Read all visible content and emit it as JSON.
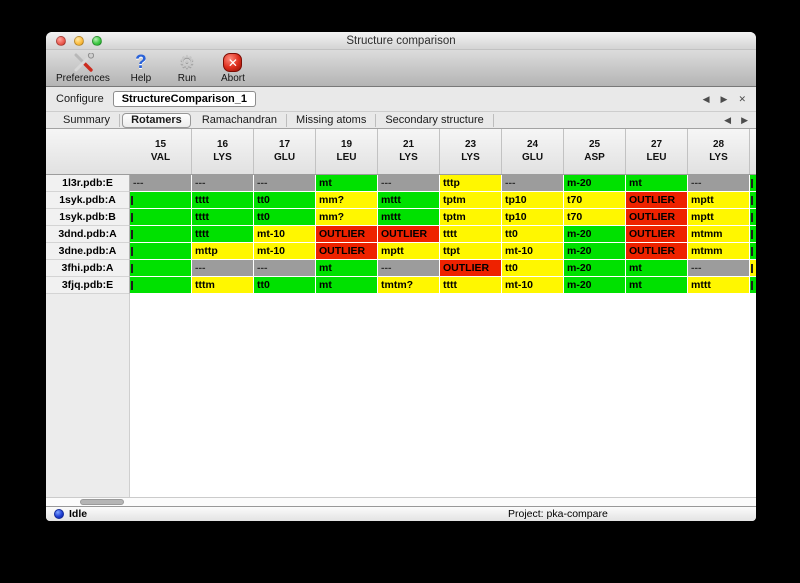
{
  "window": {
    "title": "Structure comparison"
  },
  "toolbar": {
    "buttons": [
      {
        "label": "Preferences",
        "icon": "preferences-tools-icon"
      },
      {
        "label": "Help",
        "icon": "help-question-icon"
      },
      {
        "label": "Run",
        "icon": "run-gear-icon"
      },
      {
        "label": "Abort",
        "icon": "abort-icon"
      }
    ]
  },
  "configure": {
    "label": "Configure",
    "value": "StructureComparison_1",
    "nav": [
      {
        "icon": "prev-arrow-icon"
      },
      {
        "icon": "next-arrow-icon"
      },
      {
        "icon": "close-icon"
      }
    ]
  },
  "tabs": {
    "items": [
      "Summary",
      "Rotamers",
      "Ramachandran",
      "Missing atoms",
      "Secondary structure"
    ],
    "active": "Rotamers",
    "nav": [
      {
        "icon": "prev-arrow-icon"
      },
      {
        "icon": "next-arrow-icon"
      }
    ]
  },
  "table": {
    "columns": [
      {
        "num": "15",
        "res": "VAL"
      },
      {
        "num": "16",
        "res": "LYS"
      },
      {
        "num": "17",
        "res": "GLU"
      },
      {
        "num": "19",
        "res": "LEU"
      },
      {
        "num": "21",
        "res": "LYS"
      },
      {
        "num": "23",
        "res": "LYS"
      },
      {
        "num": "24",
        "res": "GLU"
      },
      {
        "num": "25",
        "res": "ASP"
      },
      {
        "num": "27",
        "res": "LEU"
      },
      {
        "num": "28",
        "res": "LYS"
      }
    ],
    "rows": [
      {
        "label": "1l3r.pdb:E",
        "edge": "green",
        "cells": [
          {
            "t": "---",
            "c": "gray"
          },
          {
            "t": "---",
            "c": "gray"
          },
          {
            "t": "---",
            "c": "gray"
          },
          {
            "t": "mt",
            "c": "green"
          },
          {
            "t": "---",
            "c": "gray"
          },
          {
            "t": "tttp",
            "c": "yellow"
          },
          {
            "t": "---",
            "c": "gray"
          },
          {
            "t": "m-20",
            "c": "green"
          },
          {
            "t": "mt",
            "c": "green"
          },
          {
            "t": "---",
            "c": "gray"
          }
        ]
      },
      {
        "label": "1syk.pdb:A",
        "edge": "green",
        "cells": [
          {
            "t": "",
            "c": "green",
            "clip": true
          },
          {
            "t": "tttt",
            "c": "green"
          },
          {
            "t": "tt0",
            "c": "green"
          },
          {
            "t": "mm?",
            "c": "yellow"
          },
          {
            "t": "mttt",
            "c": "green"
          },
          {
            "t": "tptm",
            "c": "yellow"
          },
          {
            "t": "tp10",
            "c": "yellow"
          },
          {
            "t": "t70",
            "c": "yellow"
          },
          {
            "t": "OUTLIER",
            "c": "red"
          },
          {
            "t": "mptt",
            "c": "yellow"
          }
        ]
      },
      {
        "label": "1syk.pdb:B",
        "edge": "green",
        "cells": [
          {
            "t": "",
            "c": "green",
            "clip": true
          },
          {
            "t": "tttt",
            "c": "green"
          },
          {
            "t": "tt0",
            "c": "green"
          },
          {
            "t": "mm?",
            "c": "yellow"
          },
          {
            "t": "mttt",
            "c": "green"
          },
          {
            "t": "tptm",
            "c": "yellow"
          },
          {
            "t": "tp10",
            "c": "yellow"
          },
          {
            "t": "t70",
            "c": "yellow"
          },
          {
            "t": "OUTLIER",
            "c": "red"
          },
          {
            "t": "mptt",
            "c": "yellow"
          }
        ]
      },
      {
        "label": "3dnd.pdb:A",
        "edge": "green",
        "cells": [
          {
            "t": "",
            "c": "green",
            "clip": true
          },
          {
            "t": "tttt",
            "c": "green"
          },
          {
            "t": "mt-10",
            "c": "yellow"
          },
          {
            "t": "OUTLIER",
            "c": "red"
          },
          {
            "t": "OUTLIER",
            "c": "red"
          },
          {
            "t": "tttt",
            "c": "yellow"
          },
          {
            "t": "tt0",
            "c": "yellow"
          },
          {
            "t": "m-20",
            "c": "green"
          },
          {
            "t": "OUTLIER",
            "c": "red"
          },
          {
            "t": "mtmm",
            "c": "yellow"
          }
        ]
      },
      {
        "label": "3dne.pdb:A",
        "edge": "green",
        "cells": [
          {
            "t": "",
            "c": "green",
            "clip": true
          },
          {
            "t": "mttp",
            "c": "yellow"
          },
          {
            "t": "mt-10",
            "c": "yellow"
          },
          {
            "t": "OUTLIER",
            "c": "red"
          },
          {
            "t": "mptt",
            "c": "yellow"
          },
          {
            "t": "ttpt",
            "c": "yellow"
          },
          {
            "t": "mt-10",
            "c": "yellow"
          },
          {
            "t": "m-20",
            "c": "green"
          },
          {
            "t": "OUTLIER",
            "c": "red"
          },
          {
            "t": "mtmm",
            "c": "yellow"
          }
        ]
      },
      {
        "label": "3fhi.pdb:A",
        "edge": "yellow",
        "cells": [
          {
            "t": "",
            "c": "green",
            "clip": true
          },
          {
            "t": "---",
            "c": "gray"
          },
          {
            "t": "---",
            "c": "gray"
          },
          {
            "t": "mt",
            "c": "green"
          },
          {
            "t": "---",
            "c": "gray"
          },
          {
            "t": "OUTLIER",
            "c": "red"
          },
          {
            "t": "tt0",
            "c": "yellow"
          },
          {
            "t": "m-20",
            "c": "green"
          },
          {
            "t": "mt",
            "c": "green"
          },
          {
            "t": "---",
            "c": "gray"
          }
        ]
      },
      {
        "label": "3fjq.pdb:E",
        "edge": "green",
        "cells": [
          {
            "t": "",
            "c": "green",
            "clip": true
          },
          {
            "t": "tttm",
            "c": "yellow"
          },
          {
            "t": "tt0",
            "c": "green"
          },
          {
            "t": "mt",
            "c": "green"
          },
          {
            "t": "tmtm?",
            "c": "yellow"
          },
          {
            "t": "tttt",
            "c": "yellow"
          },
          {
            "t": "mt-10",
            "c": "yellow"
          },
          {
            "t": "m-20",
            "c": "green"
          },
          {
            "t": "mt",
            "c": "green"
          },
          {
            "t": "mttt",
            "c": "yellow"
          }
        ]
      }
    ]
  },
  "statusbar": {
    "status": "Idle",
    "project": "Project: pka-compare"
  },
  "colors": {
    "green": "#00e100",
    "yellow": "#fff700",
    "red": "#ee2200",
    "gray": "#9c9c9c"
  }
}
